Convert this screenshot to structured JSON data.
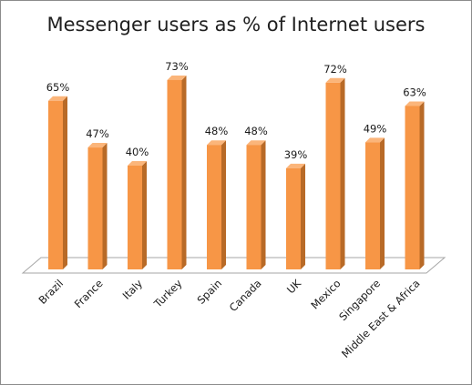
{
  "chart_data": {
    "type": "bar",
    "title": "Messenger users as % of Internet users",
    "categories": [
      "Brazil",
      "France",
      "Italy",
      "Turkey",
      "Spain",
      "Canada",
      "UK",
      "Mexico",
      "Singapore",
      "Middle East & Africa"
    ],
    "values": [
      65,
      47,
      40,
      73,
      48,
      48,
      39,
      72,
      49,
      63
    ],
    "data_labels": [
      "65%",
      "47%",
      "40%",
      "73%",
      "48%",
      "48%",
      "39%",
      "72%",
      "49%",
      "63%"
    ],
    "value_unit": "%",
    "ylim": [
      0,
      80
    ],
    "grid": false,
    "legend": "none",
    "style": "3d-column",
    "colors": {
      "bar_front": "#f79646",
      "bar_side": "#b86a27",
      "bar_top": "#fbb57a",
      "floor_edge": "#a6a6a6",
      "text": "#1a1a1a"
    }
  }
}
